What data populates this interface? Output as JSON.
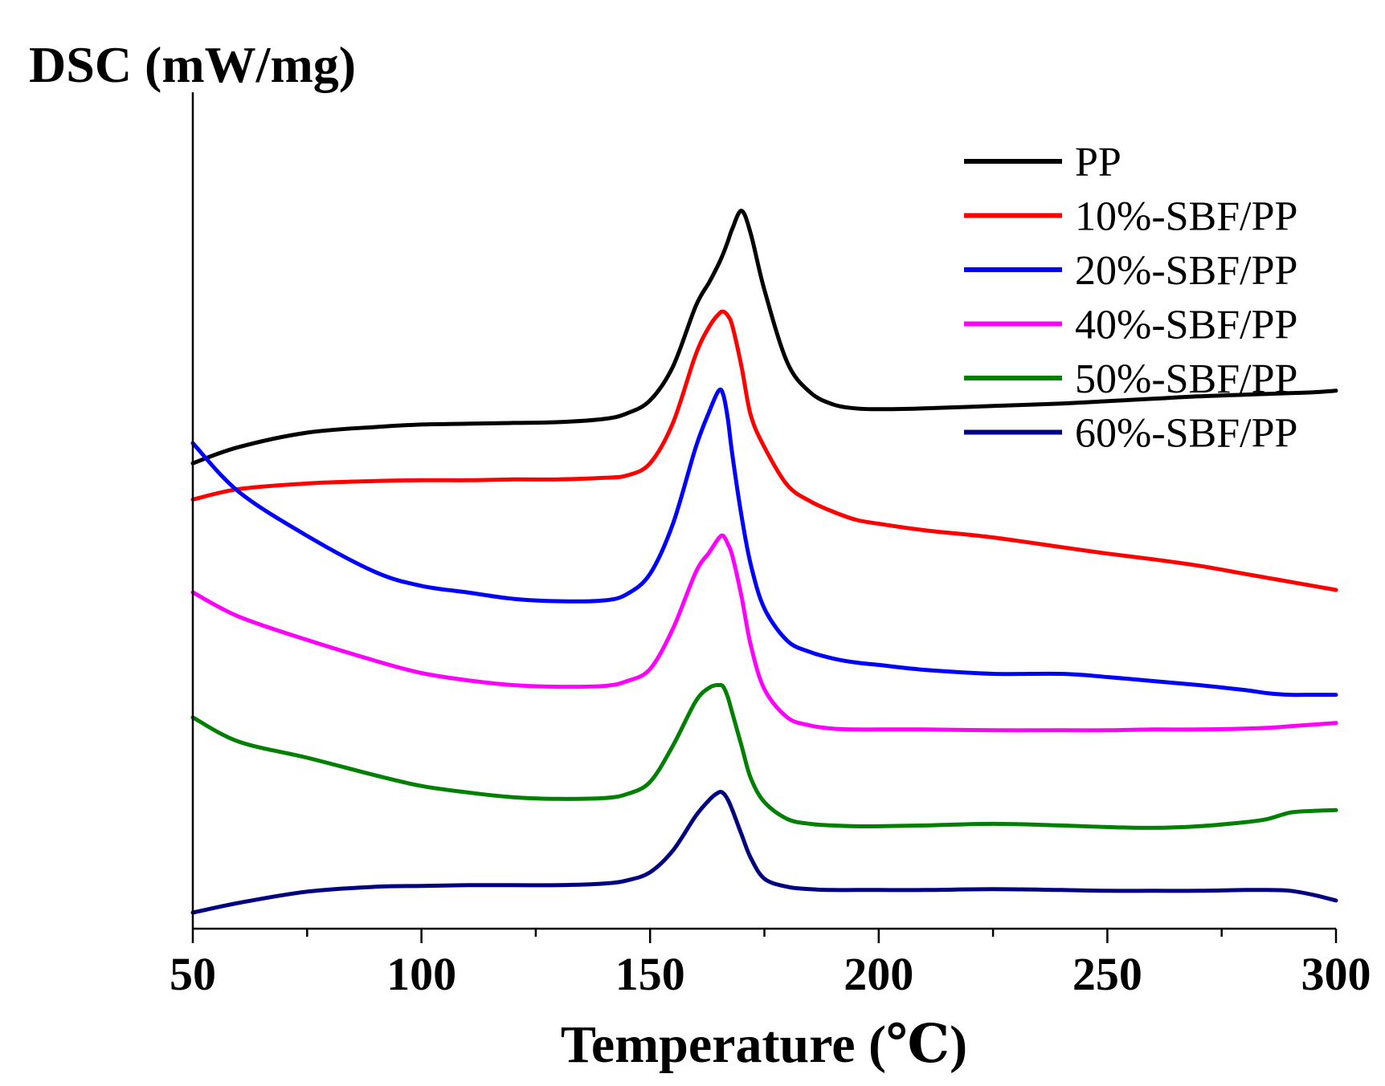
{
  "chart_data": {
    "type": "line",
    "title": "",
    "ylabel": "DSC (mW/mg)",
    "xlabel": "Temperature (℃)",
    "xlim": [
      50,
      300
    ],
    "ylim": [
      0,
      100
    ],
    "x_ticks": [
      "50",
      "100",
      "150",
      "200",
      "250",
      "300"
    ],
    "y_ticks_shown": false,
    "legend_position": "top-right",
    "x": [
      50,
      60,
      75,
      90,
      100,
      110,
      120,
      130,
      140,
      145,
      150,
      155,
      160,
      163,
      165,
      166,
      167,
      168,
      170,
      172,
      175,
      180,
      185,
      190,
      195,
      200,
      210,
      225,
      240,
      250,
      260,
      270,
      280,
      285,
      290,
      295,
      300
    ],
    "series": [
      {
        "name": "PP",
        "color": "#000000",
        "values": [
          56.5,
          58.5,
          60.3,
          61.0,
          61.3,
          61.4,
          61.5,
          61.6,
          62.0,
          62.7,
          64.3,
          68.5,
          76.0,
          79.0,
          81.2,
          82.5,
          84.0,
          85.6,
          87.8,
          85.0,
          78.0,
          69.0,
          65.3,
          63.8,
          63.3,
          63.2,
          63.3,
          63.6,
          63.9,
          64.2,
          64.5,
          64.8,
          65.0,
          65.1,
          65.2,
          65.3,
          65.5
        ]
      },
      {
        "name": "10%-SBF/PP",
        "color": "#ff0000",
        "values": [
          52.0,
          53.3,
          54.0,
          54.3,
          54.4,
          54.4,
          54.5,
          54.5,
          54.7,
          55.0,
          56.5,
          61.5,
          70.0,
          73.5,
          75.0,
          75.3,
          74.8,
          73.5,
          68.5,
          62.5,
          58.5,
          53.8,
          51.8,
          50.5,
          49.5,
          49.0,
          48.2,
          47.3,
          46.1,
          45.3,
          44.6,
          43.8,
          42.8,
          42.3,
          41.8,
          41.3,
          40.8
        ]
      },
      {
        "name": "20%-SBF/PP",
        "color": "#0000ff",
        "values": [
          59.0,
          53.0,
          47.5,
          43.0,
          41.3,
          40.5,
          39.7,
          39.4,
          39.5,
          40.3,
          42.8,
          49.0,
          58.5,
          63.0,
          65.5,
          65.0,
          62.0,
          57.5,
          50.0,
          44.0,
          38.5,
          34.5,
          33.1,
          32.3,
          31.8,
          31.5,
          30.9,
          30.4,
          30.4,
          30.0,
          29.5,
          29.0,
          28.4,
          28.0,
          27.8,
          27.8,
          27.8
        ]
      },
      {
        "name": "40%-SBF/PP",
        "color": "#ff00ff",
        "values": [
          40.5,
          37.5,
          34.6,
          32.0,
          30.5,
          29.6,
          29.0,
          28.8,
          28.9,
          29.5,
          31.0,
          36.0,
          43.0,
          45.5,
          47.2,
          47.5,
          46.5,
          45.0,
          40.0,
          34.0,
          28.5,
          25.0,
          24.0,
          23.6,
          23.5,
          23.5,
          23.5,
          23.4,
          23.4,
          23.4,
          23.5,
          23.5,
          23.6,
          23.7,
          23.9,
          24.1,
          24.3
        ]
      },
      {
        "name": "50%-SBF/PP",
        "color": "#008000",
        "values": [
          25.0,
          22.0,
          20.0,
          17.8,
          16.5,
          15.7,
          15.1,
          14.9,
          15.0,
          15.5,
          17.0,
          21.5,
          27.0,
          28.7,
          29.0,
          28.8,
          27.5,
          25.5,
          21.5,
          17.5,
          14.5,
          12.4,
          11.8,
          11.6,
          11.5,
          11.5,
          11.6,
          11.8,
          11.6,
          11.4,
          11.3,
          11.5,
          12.0,
          12.4,
          13.2,
          13.4,
          13.5
        ]
      },
      {
        "name": "60%-SBF/PP",
        "color": "#000080",
        "values": [
          0.8,
          2.0,
          3.4,
          4.0,
          4.1,
          4.2,
          4.2,
          4.2,
          4.4,
          4.8,
          5.8,
          8.5,
          12.8,
          14.8,
          15.7,
          15.6,
          14.8,
          13.5,
          10.5,
          7.6,
          5.0,
          4.0,
          3.7,
          3.6,
          3.6,
          3.6,
          3.6,
          3.7,
          3.6,
          3.5,
          3.5,
          3.5,
          3.6,
          3.6,
          3.5,
          3.0,
          2.3
        ]
      }
    ]
  }
}
